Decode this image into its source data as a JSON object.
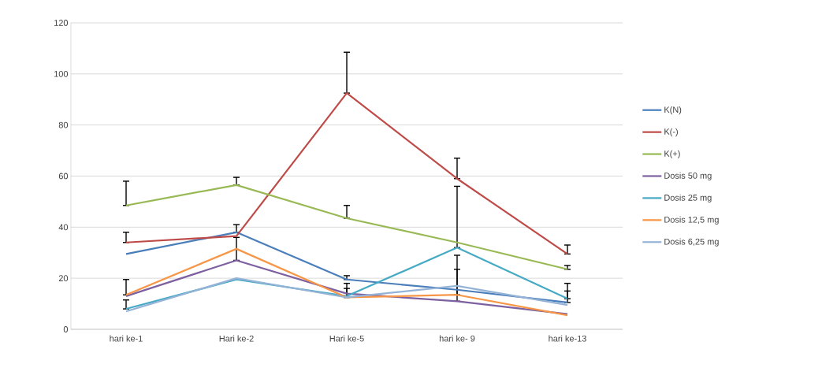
{
  "chart_data": {
    "type": "line",
    "categories": [
      "hari ke-1",
      "Hari ke-2",
      "Hari ke-5",
      "hari ke- 9",
      "hari ke-13"
    ],
    "series": [
      {
        "name": "K(N)",
        "color": "#4a7ebb",
        "values": [
          29.5,
          38,
          19.5,
          15.5,
          10.5
        ],
        "errors": [
          null,
          [
            38,
            41
          ],
          [
            19.5,
            21
          ],
          null,
          [
            10.5,
            15
          ]
        ]
      },
      {
        "name": "K(-)",
        "color": "#be4b48",
        "values": [
          34,
          36.5,
          92.5,
          59,
          29.5
        ],
        "errors": [
          [
            34,
            38
          ],
          null,
          [
            92.5,
            108.5
          ],
          [
            59,
            67
          ],
          [
            29.5,
            33
          ]
        ]
      },
      {
        "name": "K(+)",
        "color": "#98b954",
        "values": [
          48.5,
          56.5,
          43.5,
          34,
          23.5
        ],
        "errors": [
          [
            48.5,
            58
          ],
          [
            56.5,
            59.5
          ],
          [
            43.5,
            48.5
          ],
          null,
          [
            23.5,
            25
          ]
        ]
      },
      {
        "name": "Dosis 50 mg",
        "color": "#7d60a0",
        "values": [
          13,
          27,
          14,
          11,
          6
        ],
        "errors": [
          null,
          [
            27,
            36
          ],
          null,
          [
            11,
            23.5
          ],
          null
        ]
      },
      {
        "name": "Dosis 25 mg",
        "color": "#46aac5",
        "values": [
          8,
          19.5,
          13,
          32,
          12
        ],
        "errors": [
          [
            8,
            11.5
          ],
          null,
          null,
          [
            32,
            56
          ],
          [
            12,
            18
          ]
        ]
      },
      {
        "name": "Dosis 12,5 mg",
        "color": "#f79646",
        "values": [
          13.5,
          31.5,
          12.5,
          13.5,
          5.5
        ],
        "errors": [
          [
            13.5,
            19.5
          ],
          null,
          [
            12.5,
            18
          ],
          [
            13.5,
            29
          ],
          null
        ]
      },
      {
        "name": "Dosis 6,25 mg",
        "color": "#95b3d7",
        "values": [
          7,
          20,
          12.5,
          17,
          9.5
        ],
        "errors": [
          null,
          null,
          [
            12.5,
            16
          ],
          null,
          null
        ]
      }
    ],
    "ylim": [
      0,
      120
    ],
    "yticks": [
      0,
      20,
      40,
      60,
      80,
      100,
      120
    ],
    "grid": "y",
    "legend": "right",
    "marker": "none",
    "line_style": "solid"
  }
}
